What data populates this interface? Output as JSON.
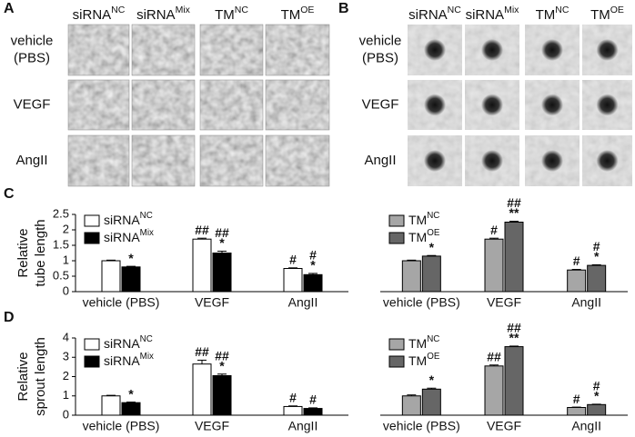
{
  "panels": [
    {
      "letter": "A",
      "headers": [
        {
          "text": "siRNA",
          "sup": "NC"
        },
        {
          "text": "siRNA",
          "sup": "Mix"
        },
        {
          "text": "TM",
          "sup": "NC"
        },
        {
          "text": "TM",
          "sup": "OE"
        }
      ],
      "rows": [
        [
          "vehicle",
          "(PBS)"
        ],
        [
          "VEGF"
        ],
        [
          "AngII"
        ]
      ]
    },
    {
      "letter": "B",
      "headers": [
        {
          "text": "siRNA",
          "sup": "NC"
        },
        {
          "text": "siRNA",
          "sup": "Mix"
        },
        {
          "text": "TM",
          "sup": "NC"
        },
        {
          "text": "TM",
          "sup": "OE"
        }
      ],
      "rows": [
        [
          "vehicle",
          "(PBS)"
        ],
        [
          "VEGF"
        ],
        [
          "AngII"
        ]
      ]
    }
  ],
  "chart_letters": [
    "C",
    "D"
  ],
  "chart_data": [
    {
      "type": "bar",
      "ylabel": [
        "Relative",
        "tube length"
      ],
      "categories": [
        "vehicle (PBS)",
        "VEGF",
        "AngII"
      ],
      "ylim": [
        0,
        2.5
      ],
      "yticks": [
        0,
        0.5,
        1,
        1.5,
        2,
        2.5
      ],
      "series": [
        {
          "name": "siRNA",
          "name_sup": "NC",
          "color": "#ffffff",
          "values": [
            1.0,
            1.7,
            0.75
          ],
          "errors": [
            0.02,
            0.03,
            0.02
          ],
          "significance": [
            [],
            [
              "##"
            ],
            [
              "#"
            ]
          ]
        },
        {
          "name": "siRNA",
          "name_sup": "Mix",
          "color": "#000000",
          "values": [
            0.8,
            1.25,
            0.55
          ],
          "errors": [
            0.02,
            0.06,
            0.04
          ],
          "significance": [
            [
              "*"
            ],
            [
              "##",
              "*"
            ],
            [
              "#",
              "*"
            ]
          ]
        }
      ]
    },
    {
      "type": "bar",
      "categories": [
        "vehicle (PBS)",
        "VEGF",
        "AngII"
      ],
      "ylim": [
        0,
        2.5
      ],
      "series": [
        {
          "name": "TM",
          "name_sup": "NC",
          "color": "#a6a6a6",
          "values": [
            1.0,
            1.7,
            0.7
          ],
          "errors": [
            0.02,
            0.03,
            0.02
          ],
          "significance": [
            [],
            [
              "#"
            ],
            [
              "#"
            ]
          ]
        },
        {
          "name": "TM",
          "name_sup": "OE",
          "color": "#666666",
          "values": [
            1.15,
            2.25,
            0.85
          ],
          "errors": [
            0.02,
            0.03,
            0.02
          ],
          "significance": [
            [
              "*"
            ],
            [
              "##",
              "**"
            ],
            [
              "#",
              "*"
            ]
          ]
        }
      ]
    },
    {
      "type": "bar",
      "ylabel": [
        "Relative",
        "sprout length"
      ],
      "categories": [
        "vehicle (PBS)",
        "VEGF",
        "AngII"
      ],
      "ylim": [
        0,
        4
      ],
      "yticks": [
        0,
        1,
        2,
        3,
        4
      ],
      "series": [
        {
          "name": "siRNA",
          "name_sup": "NC",
          "color": "#ffffff",
          "values": [
            1.0,
            2.65,
            0.45
          ],
          "errors": [
            0.03,
            0.2,
            0.03
          ],
          "significance": [
            [],
            [
              "##"
            ],
            [
              "#"
            ]
          ]
        },
        {
          "name": "siRNA",
          "name_sup": "Mix",
          "color": "#000000",
          "values": [
            0.65,
            2.05,
            0.35
          ],
          "errors": [
            0.03,
            0.08,
            0.03
          ],
          "significance": [
            [
              "*"
            ],
            [
              "##",
              "*"
            ],
            [
              "#"
            ]
          ]
        }
      ]
    },
    {
      "type": "bar",
      "categories": [
        "vehicle (PBS)",
        "VEGF",
        "AngII"
      ],
      "ylim": [
        0,
        4
      ],
      "series": [
        {
          "name": "TM",
          "name_sup": "NC",
          "color": "#a6a6a6",
          "values": [
            1.0,
            2.55,
            0.4
          ],
          "errors": [
            0.05,
            0.05,
            0.02
          ],
          "significance": [
            [],
            [
              "##"
            ],
            [
              "#"
            ]
          ]
        },
        {
          "name": "TM",
          "name_sup": "OE",
          "color": "#666666",
          "values": [
            1.35,
            3.55,
            0.55
          ],
          "errors": [
            0.05,
            0.03,
            0.02
          ],
          "significance": [
            [
              "*"
            ],
            [
              "##",
              "**"
            ],
            [
              "#",
              "*"
            ]
          ]
        }
      ]
    }
  ]
}
